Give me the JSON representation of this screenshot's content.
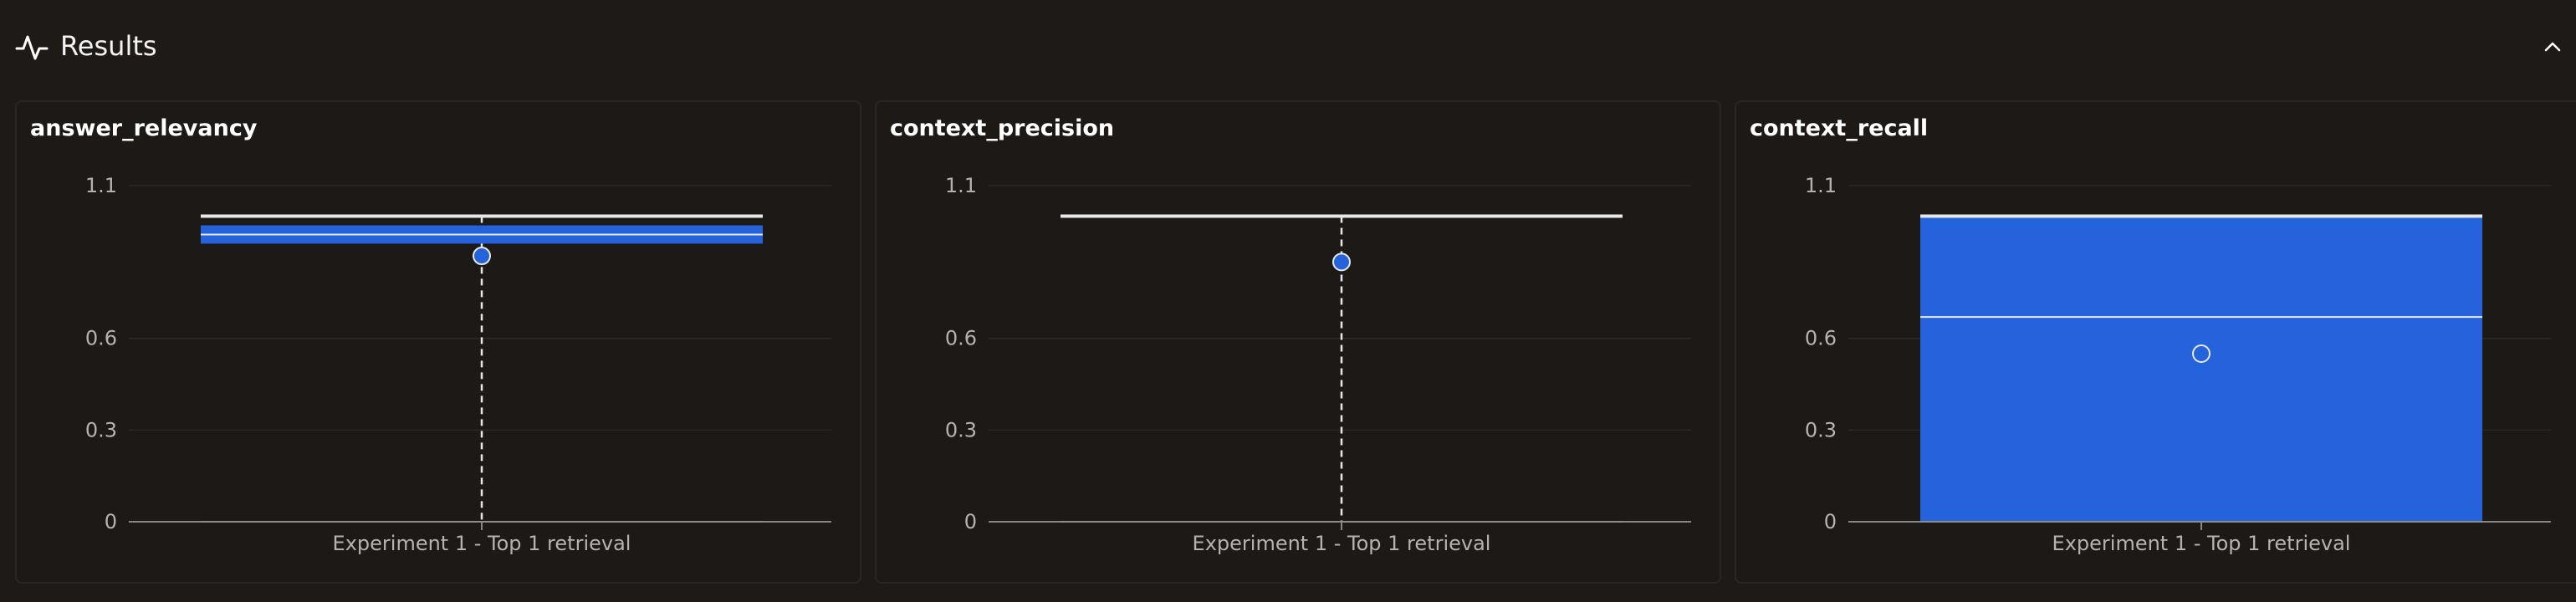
{
  "header": {
    "title": "Results",
    "icon": "activity-pulse-icon",
    "collapse_icon": "chevron-up-icon"
  },
  "colors": {
    "background": "#1e1a18",
    "box_fill": "#2563dd",
    "whisker": "#e8e8e8",
    "grid": "#2b2826"
  },
  "chart_data": [
    {
      "type": "box",
      "title": "answer_relevancy",
      "categories": [
        "Experiment 1 - Top 1 retrieval"
      ],
      "ylim": [
        0,
        1.1
      ],
      "yticks": [
        "0",
        "0.3",
        "0.6",
        "1.1"
      ],
      "ytick_values": [
        0,
        0.3,
        0.6,
        1.1
      ],
      "min": 0,
      "q1": 0.91,
      "median": 0.94,
      "q3": 0.97,
      "max": 1.0,
      "mean": 0.87,
      "grid": true
    },
    {
      "type": "box",
      "title": "context_precision",
      "categories": [
        "Experiment 1 - Top 1 retrieval"
      ],
      "ylim": [
        0,
        1.1
      ],
      "yticks": [
        "0",
        "0.3",
        "0.6",
        "1.1"
      ],
      "ytick_values": [
        0,
        0.3,
        0.6,
        1.1
      ],
      "min": 0,
      "q1": 1.0,
      "median": 1.0,
      "q3": 1.0,
      "max": 1.0,
      "mean": 0.85,
      "grid": true
    },
    {
      "type": "box",
      "title": "context_recall",
      "categories": [
        "Experiment 1 - Top 1 retrieval"
      ],
      "ylim": [
        0,
        1.1
      ],
      "yticks": [
        "0",
        "0.3",
        "0.6",
        "1.1"
      ],
      "ytick_values": [
        0,
        0.3,
        0.6,
        1.1
      ],
      "min": 0,
      "q1": 0,
      "median": 0.67,
      "q3": 1.0,
      "max": 1.0,
      "mean": 0.55,
      "grid": true
    }
  ]
}
